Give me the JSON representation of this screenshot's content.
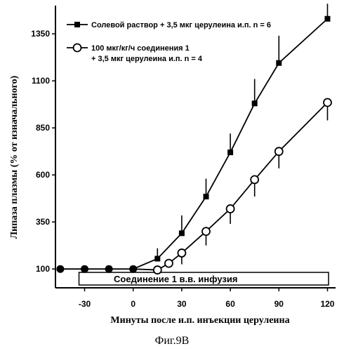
{
  "chart_data": {
    "type": "line",
    "xlabel": "Минуты после и.п. инъекции церулеина",
    "ylabel": "Липаза плазмы (% от изначального)",
    "caption": "Фиг.9В",
    "x_ticks": [
      "-30",
      "0",
      "30",
      "60",
      "90",
      "120"
    ],
    "y_ticks": [
      "100",
      "350",
      "600",
      "850",
      "1100",
      "1350"
    ],
    "xlim": [
      -48,
      125
    ],
    "ylim": [
      0,
      1500
    ],
    "infusion_bar": {
      "label": "Соединение 1  в.в. инфузия",
      "x_start": -30,
      "x_end": 125
    },
    "series": [
      {
        "name": "Солевой раствор + 3,5 мкг церулеина и.п. n = 6",
        "marker": "filled-square",
        "x": [
          15,
          30,
          45,
          60,
          75,
          90,
          120
        ],
        "y": [
          155,
          290,
          485,
          720,
          980,
          1195,
          1430
        ],
        "err": [
          55,
          95,
          95,
          100,
          130,
          145,
          80
        ]
      },
      {
        "name": "100 мкг/кг/ч соединения 1\n+ 3,5 мкг церулеина и.п. n = 4",
        "marker": "open-circle",
        "x": [
          15,
          22,
          30,
          45,
          60,
          75,
          90,
          120
        ],
        "y": [
          95,
          130,
          185,
          300,
          420,
          575,
          725,
          985
        ],
        "err": [
          0,
          0,
          60,
          75,
          80,
          90,
          90,
          95
        ]
      },
      {
        "name": "",
        "marker": "filled-circle",
        "x": [
          -45,
          -30,
          -15,
          0
        ],
        "y": [
          100,
          100,
          100,
          100
        ],
        "err": [
          0,
          0,
          0,
          0
        ]
      }
    ]
  }
}
